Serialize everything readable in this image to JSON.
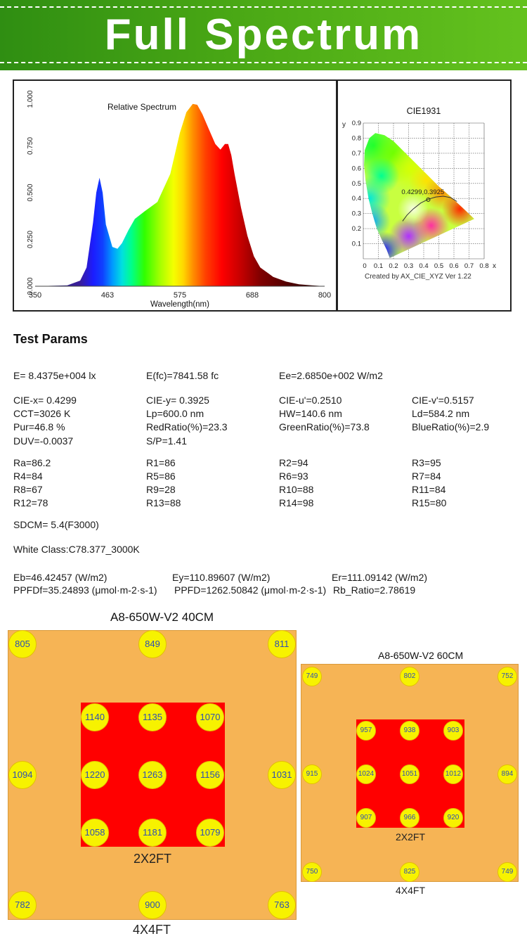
{
  "banner": {
    "title": "Full Spectrum"
  },
  "chart_data": [
    {
      "type": "area",
      "title": "Relative Spectrum",
      "xlabel": "Wavelength(nm)",
      "ylabel": "",
      "xlim": [
        350,
        800
      ],
      "ylim": [
        0,
        1.0
      ],
      "x_ticks": [
        "350",
        "463",
        "575",
        "688",
        "800"
      ],
      "y_ticks": [
        "0.000",
        "0.250",
        "0.500",
        "0.750",
        "1.000"
      ],
      "grid": false,
      "x": [
        350,
        400,
        420,
        430,
        440,
        445,
        450,
        455,
        460,
        470,
        478,
        485,
        495,
        505,
        520,
        540,
        560,
        575,
        585,
        595,
        602,
        610,
        620,
        630,
        638,
        645,
        650,
        655,
        660,
        670,
        680,
        690,
        700,
        720,
        740,
        760,
        780,
        800
      ],
      "y": [
        0.0,
        0.005,
        0.03,
        0.1,
        0.34,
        0.5,
        0.58,
        0.5,
        0.33,
        0.21,
        0.2,
        0.23,
        0.3,
        0.36,
        0.4,
        0.45,
        0.6,
        0.82,
        0.93,
        0.975,
        0.97,
        0.92,
        0.84,
        0.76,
        0.73,
        0.76,
        0.76,
        0.7,
        0.6,
        0.42,
        0.27,
        0.16,
        0.1,
        0.05,
        0.025,
        0.01,
        0.005,
        0.0
      ]
    },
    {
      "type": "scatter",
      "title": "CIE1931",
      "xlabel": "x",
      "ylabel": "y",
      "xlim": [
        0,
        0.8
      ],
      "ylim": [
        0,
        0.9
      ],
      "x_ticks": [
        "0",
        "0.1",
        "0.2",
        "0.3",
        "0.4",
        "0.5",
        "0.6",
        "0.7",
        "0.8"
      ],
      "y_ticks": [
        "0.1",
        "0.2",
        "0.3",
        "0.4",
        "0.5",
        "0.6",
        "0.7",
        "0.8",
        "0.9"
      ],
      "grid": true,
      "point": {
        "x": 0.4299,
        "y": 0.3925,
        "label": "0.4299,0.3925"
      },
      "caption": "Created by AX_CIE_XYZ Ver 1.22"
    }
  ],
  "test_params": {
    "title": "Test Params",
    "rows": [
      {
        "y": 0,
        "cells": [
          "E=  8.4375e+004 lx",
          "E(fc)=7841.58 fc",
          "Ee=2.6850e+002 W/m2",
          ""
        ]
      },
      {
        "y": 1,
        "cells": [
          "CIE-x= 0.4299",
          "CIE-y= 0.3925",
          "CIE-u'=0.2510",
          "CIE-v'=0.5157"
        ]
      },
      {
        "y": 2,
        "cells": [
          "CCT=3026 K",
          "Lp=600.0 nm",
          "HW=140.6 nm",
          "Ld=584.2 nm"
        ]
      },
      {
        "y": 3,
        "cells": [
          "Pur=46.8 %",
          "RedRatio(%)=23.3",
          "GreenRatio(%)=73.8",
          "BlueRatio(%)=2.9"
        ]
      },
      {
        "y": 4,
        "cells": [
          "DUV=-0.0037",
          "S/P=1.41",
          "",
          ""
        ]
      },
      {
        "y": 5,
        "cells": [
          "Ra=86.2",
          "R1=86",
          "R2=94",
          "R3=95"
        ]
      },
      {
        "y": 6,
        "cells": [
          "R4=84",
          "R5=86",
          "R6=93",
          "R7=84"
        ]
      },
      {
        "y": 7,
        "cells": [
          "R8=67",
          "R9=28",
          "R10=88",
          "R11=84"
        ]
      },
      {
        "y": 8,
        "cells": [
          "R12=78",
          "R13=88",
          "R14=98",
          "R15=80"
        ]
      }
    ],
    "sdcm": "SDCM= 5.4(F3000)",
    "white_class": "White Class:C78.377_3000K",
    "eb": "Eb=46.42457 (W/m2)",
    "ey": "Ey=110.89607 (W/m2)",
    "er": "Er=111.09142 (W/m2)",
    "ppfdf": "PPFDf=35.24893 (μmol·m-2·s-1)",
    "ppfd": "PPFD=1262.50842 (μmol·m-2·s-1)",
    "rb_ratio": "Rb_Ratio=2.78619"
  },
  "maps": [
    {
      "title": "A8-650W-V2    40CM",
      "outer_label": "4X4FT",
      "inner_label": "2X2FT",
      "outer": [
        "805",
        "849",
        "811",
        "1094",
        "1031",
        "782",
        "900",
        "763"
      ],
      "inner": [
        "1140",
        "1135",
        "1070",
        "1220",
        "1263",
        "1156",
        "1058",
        "1181",
        "1079"
      ]
    },
    {
      "title": "A8-650W-V2   60CM",
      "outer_label": "4X4FT",
      "inner_label": "2X2FT",
      "outer": [
        "749",
        "802",
        "752",
        "915",
        "894",
        "750",
        "825",
        "749"
      ],
      "inner": [
        "957",
        "938",
        "903",
        "1024",
        "1051",
        "1012",
        "907",
        "966",
        "920"
      ]
    }
  ],
  "colors": {
    "banner_green": "#4aa815",
    "coverage_orange": "#f6b455",
    "center_red": "#ff0000",
    "sensor_yellow": "#f7f200",
    "value_blue": "#2e4fb5"
  }
}
